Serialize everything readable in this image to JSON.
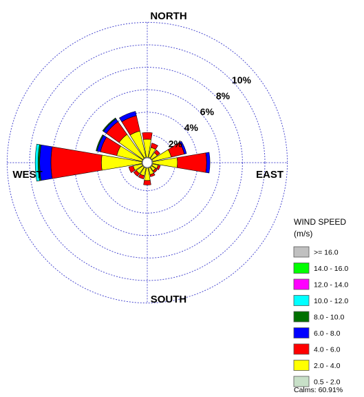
{
  "chart_data": {
    "type": "wind-rose",
    "title": "",
    "compass": [
      "NORTH",
      "EAST",
      "SOUTH",
      "WEST"
    ],
    "radial_ticks": [
      {
        "value": 2,
        "label": "2%"
      },
      {
        "value": 4,
        "label": "4%"
      },
      {
        "value": 6,
        "label": "6%"
      },
      {
        "value": 8,
        "label": "8%"
      },
      {
        "value": 10,
        "label": "10%"
      }
    ],
    "rmax": 12,
    "legend": {
      "title": "WIND SPEED",
      "unit": "(m/s)",
      "bins": [
        {
          "label": ">= 16.0",
          "color": "#c0c0c0"
        },
        {
          "label": "14.0 - 16.0",
          "color": "#00ff00"
        },
        {
          "label": "12.0 - 14.0",
          "color": "#ff00ff"
        },
        {
          "label": "10.0 - 12.0",
          "color": "#00ffff"
        },
        {
          "label": "8.0 - 10.0",
          "color": "#007000"
        },
        {
          "label": "6.0 - 8.0",
          "color": "#0000ff"
        },
        {
          "label": "4.0 - 6.0",
          "color": "#ff0000"
        },
        {
          "label": "2.0 - 4.0",
          "color": "#ffff00"
        },
        {
          "label": "0.5 - 2.0",
          "color": "#c8e0c8"
        }
      ],
      "calms": "Calms: 60.91%"
    },
    "bin_order": [
      "0.5 - 2.0",
      "2.0 - 4.0",
      "4.0 - 6.0",
      "6.0 - 8.0",
      "8.0 - 10.0",
      "10.0 - 12.0",
      "12.0 - 14.0",
      "14.0 - 16.0",
      ">= 16.0"
    ],
    "directions": [
      {
        "dir": "N",
        "segments": [
          0,
          1.6,
          0.6,
          0,
          0,
          0,
          0,
          0,
          0
        ]
      },
      {
        "dir": "NNE",
        "segments": [
          0,
          0.9,
          0.4,
          0,
          0,
          0,
          0,
          0,
          0
        ]
      },
      {
        "dir": "NE",
        "segments": [
          0,
          0.6,
          0.3,
          0,
          0,
          0,
          0,
          0,
          0
        ]
      },
      {
        "dir": "ENE",
        "segments": [
          0,
          1.7,
          1.2,
          0.2,
          0,
          0,
          0,
          0,
          0
        ]
      },
      {
        "dir": "E",
        "segments": [
          0,
          2.2,
          2.6,
          0.3,
          0,
          0,
          0,
          0,
          0
        ]
      },
      {
        "dir": "ESE",
        "segments": [
          0,
          0.5,
          0.2,
          0,
          0,
          0,
          0,
          0,
          0
        ]
      },
      {
        "dir": "SE",
        "segments": [
          0,
          0.4,
          0.2,
          0,
          0,
          0,
          0,
          0,
          0
        ]
      },
      {
        "dir": "SSE",
        "segments": [
          0,
          0.6,
          0.2,
          0,
          0,
          0,
          0,
          0,
          0
        ]
      },
      {
        "dir": "S",
        "segments": [
          0,
          1.1,
          0.4,
          0,
          0,
          0,
          0,
          0,
          0
        ]
      },
      {
        "dir": "SSW",
        "segments": [
          0,
          0.7,
          0.3,
          0,
          0,
          0,
          0,
          0,
          0
        ]
      },
      {
        "dir": "SW",
        "segments": [
          0,
          0.7,
          0.3,
          0,
          0,
          0,
          0,
          0,
          0
        ]
      },
      {
        "dir": "WSW",
        "segments": [
          0,
          0.8,
          0.4,
          0,
          0,
          0,
          0,
          0,
          0
        ]
      },
      {
        "dir": "W",
        "segments": [
          0,
          3.6,
          4.5,
          1.0,
          0.15,
          0.25,
          0,
          0,
          0
        ]
      },
      {
        "dir": "WNW",
        "segments": [
          0,
          2.3,
          1.5,
          0.3,
          0.1,
          0,
          0,
          0,
          0
        ]
      },
      {
        "dir": "NW",
        "segments": [
          0,
          2.6,
          1.4,
          0.3,
          0.1,
          0,
          0,
          0,
          0
        ]
      },
      {
        "dir": "NNW",
        "segments": [
          0,
          2.4,
          1.4,
          0.4,
          0,
          0,
          0,
          0,
          0
        ]
      }
    ]
  }
}
